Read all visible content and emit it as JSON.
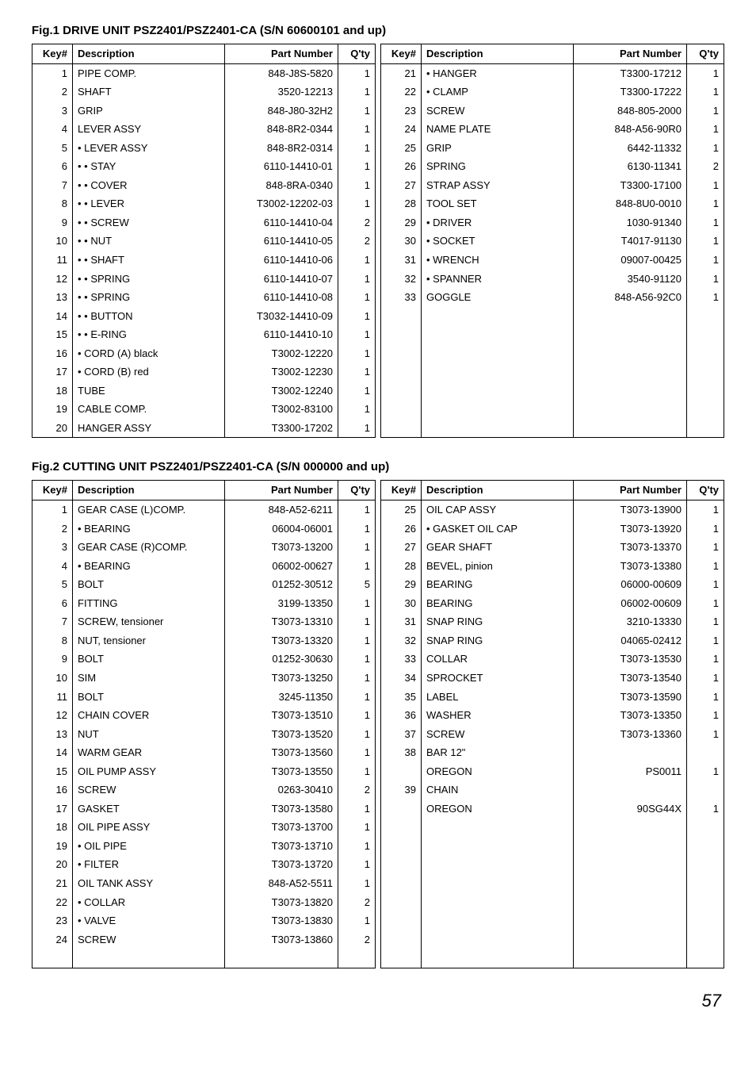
{
  "page_number": "57",
  "fig1": {
    "title": "Fig.1 DRIVE UNIT  PSZ2401/PSZ2401-CA (S/N 60600101 and up)",
    "headers": {
      "key": "Key#",
      "desc": "Description",
      "part": "Part Number",
      "qty": "Q'ty"
    },
    "left": [
      {
        "k": "1",
        "d": "PIPE COMP.",
        "p": "848-J8S-5820",
        "q": "1"
      },
      {
        "k": "2",
        "d": "SHAFT",
        "p": "3520-12213",
        "q": "1"
      },
      {
        "k": "3",
        "d": "GRIP",
        "p": "848-J80-32H2",
        "q": "1"
      },
      {
        "k": "4",
        "d": "LEVER ASSY",
        "p": "848-8R2-0344",
        "q": "1"
      },
      {
        "k": "5",
        "d": "• LEVER ASSY",
        "p": "848-8R2-0314",
        "q": "1"
      },
      {
        "k": "6",
        "d": "• • STAY",
        "p": "6110-14410-01",
        "q": "1"
      },
      {
        "k": "7",
        "d": "• • COVER",
        "p": "848-8RA-0340",
        "q": "1"
      },
      {
        "k": "8",
        "d": "• • LEVER",
        "p": "T3002-12202-03",
        "q": "1"
      },
      {
        "k": "9",
        "d": "• • SCREW",
        "p": "6110-14410-04",
        "q": "2"
      },
      {
        "k": "10",
        "d": "• • NUT",
        "p": "6110-14410-05",
        "q": "2"
      },
      {
        "k": "11",
        "d": "• • SHAFT",
        "p": "6110-14410-06",
        "q": "1"
      },
      {
        "k": "12",
        "d": "• • SPRING",
        "p": "6110-14410-07",
        "q": "1"
      },
      {
        "k": "13",
        "d": "• • SPRING",
        "p": "6110-14410-08",
        "q": "1"
      },
      {
        "k": "14",
        "d": "• • BUTTON",
        "p": "T3032-14410-09",
        "q": "1"
      },
      {
        "k": "15",
        "d": "• • E-RING",
        "p": "6110-14410-10",
        "q": "1"
      },
      {
        "k": "16",
        "d": "• CORD (A) black",
        "p": "T3002-12220",
        "q": "1"
      },
      {
        "k": "17",
        "d": "• CORD (B) red",
        "p": "T3002-12230",
        "q": "1"
      },
      {
        "k": "18",
        "d": "TUBE",
        "p": "T3002-12240",
        "q": "1"
      },
      {
        "k": "19",
        "d": "CABLE COMP.",
        "p": "T3002-83100",
        "q": "1"
      },
      {
        "k": "20",
        "d": "HANGER ASSY",
        "p": "T3300-17202",
        "q": "1"
      }
    ],
    "right": [
      {
        "k": "21",
        "d": "• HANGER",
        "p": "T3300-17212",
        "q": "1"
      },
      {
        "k": "22",
        "d": "• CLAMP",
        "p": "T3300-17222",
        "q": "1"
      },
      {
        "k": "23",
        "d": "SCREW",
        "p": "848-805-2000",
        "q": "1"
      },
      {
        "k": "24",
        "d": "NAME PLATE",
        "p": "848-A56-90R0",
        "q": "1"
      },
      {
        "k": "25",
        "d": "GRIP",
        "p": "6442-11332",
        "q": "1"
      },
      {
        "k": "26",
        "d": "SPRING",
        "p": "6130-11341",
        "q": "2"
      },
      {
        "k": "27",
        "d": "STRAP ASSY",
        "p": "T3300-17100",
        "q": "1"
      },
      {
        "k": "28",
        "d": "TOOL SET",
        "p": "848-8U0-0010",
        "q": "1"
      },
      {
        "k": "29",
        "d": "• DRIVER",
        "p": "1030-91340",
        "q": "1"
      },
      {
        "k": "30",
        "d": "• SOCKET",
        "p": "T4017-91130",
        "q": "1"
      },
      {
        "k": "31",
        "d": "• WRENCH",
        "p": "09007-00425",
        "q": "1"
      },
      {
        "k": "32",
        "d": "• SPANNER",
        "p": "3540-91120",
        "q": "1"
      },
      {
        "k": "33",
        "d": "GOGGLE",
        "p": "848-A56-92C0",
        "q": "1"
      }
    ],
    "right_pad": 7
  },
  "fig2": {
    "title": "Fig.2 CUTTING UNIT  PSZ2401/PSZ2401-CA (S/N 000000 and up)",
    "headers": {
      "key": "Key#",
      "desc": "Description",
      "part": "Part Number",
      "qty": "Q'ty"
    },
    "left": [
      {
        "k": "1",
        "d": "GEAR CASE (L)COMP.",
        "p": "848-A52-6211",
        "q": "1"
      },
      {
        "k": "2",
        "d": "• BEARING",
        "p": "06004-06001",
        "q": "1"
      },
      {
        "k": "3",
        "d": "GEAR CASE (R)COMP.",
        "p": "T3073-13200",
        "q": "1"
      },
      {
        "k": "4",
        "d": "• BEARING",
        "p": "06002-00627",
        "q": "1"
      },
      {
        "k": "5",
        "d": "BOLT",
        "p": "01252-30512",
        "q": "5"
      },
      {
        "k": "6",
        "d": "FITTING",
        "p": "3199-13350",
        "q": "1"
      },
      {
        "k": "7",
        "d": "SCREW, tensioner",
        "p": "T3073-13310",
        "q": "1"
      },
      {
        "k": "8",
        "d": "NUT, tensioner",
        "p": "T3073-13320",
        "q": "1"
      },
      {
        "k": "9",
        "d": "BOLT",
        "p": "01252-30630",
        "q": "1"
      },
      {
        "k": "10",
        "d": "SIM",
        "p": "T3073-13250",
        "q": "1"
      },
      {
        "k": "11",
        "d": "BOLT",
        "p": "3245-11350",
        "q": "1"
      },
      {
        "k": "12",
        "d": "CHAIN COVER",
        "p": "T3073-13510",
        "q": "1"
      },
      {
        "k": "13",
        "d": "NUT",
        "p": "T3073-13520",
        "q": "1"
      },
      {
        "k": "14",
        "d": "WARM GEAR",
        "p": "T3073-13560",
        "q": "1"
      },
      {
        "k": "15",
        "d": "OIL PUMP ASSY",
        "p": "T3073-13550",
        "q": "1"
      },
      {
        "k": "16",
        "d": "SCREW",
        "p": "0263-30410",
        "q": "2"
      },
      {
        "k": "17",
        "d": "GASKET",
        "p": "T3073-13580",
        "q": "1"
      },
      {
        "k": "18",
        "d": "OIL PIPE ASSY",
        "p": "T3073-13700",
        "q": "1"
      },
      {
        "k": "19",
        "d": "• OIL PIPE",
        "p": "T3073-13710",
        "q": "1"
      },
      {
        "k": "20",
        "d": "• FILTER",
        "p": "T3073-13720",
        "q": "1"
      },
      {
        "k": "21",
        "d": "OIL TANK ASSY",
        "p": "848-A52-5511",
        "q": "1"
      },
      {
        "k": "22",
        "d": "• COLLAR",
        "p": "T3073-13820",
        "q": "2"
      },
      {
        "k": "23",
        "d": "• VALVE",
        "p": "T3073-13830",
        "q": "1"
      },
      {
        "k": "24",
        "d": "SCREW",
        "p": "T3073-13860",
        "q": "2"
      }
    ],
    "right": [
      {
        "k": "25",
        "d": "OIL CAP ASSY",
        "p": "T3073-13900",
        "q": "1"
      },
      {
        "k": "26",
        "d": "• GASKET OIL CAP",
        "p": "T3073-13920",
        "q": "1"
      },
      {
        "k": "27",
        "d": "GEAR SHAFT",
        "p": "T3073-13370",
        "q": "1"
      },
      {
        "k": "28",
        "d": "BEVEL, pinion",
        "p": "T3073-13380",
        "q": "1"
      },
      {
        "k": "29",
        "d": "BEARING",
        "p": "06000-00609",
        "q": "1"
      },
      {
        "k": "30",
        "d": "BEARING",
        "p": "06002-00609",
        "q": "1"
      },
      {
        "k": "31",
        "d": "SNAP RING",
        "p": "3210-13330",
        "q": "1"
      },
      {
        "k": "32",
        "d": "SNAP RING",
        "p": "04065-02412",
        "q": "1"
      },
      {
        "k": "33",
        "d": "COLLAR",
        "p": "T3073-13530",
        "q": "1"
      },
      {
        "k": "34",
        "d": "SPROCKET",
        "p": "T3073-13540",
        "q": "1"
      },
      {
        "k": "35",
        "d": "LABEL",
        "p": "T3073-13590",
        "q": "1"
      },
      {
        "k": "36",
        "d": "WASHER",
        "p": "T3073-13350",
        "q": "1"
      },
      {
        "k": "37",
        "d": "SCREW",
        "p": "T3073-13360",
        "q": "1"
      },
      {
        "k": "38",
        "d": "BAR 12\"",
        "p": "",
        "q": ""
      },
      {
        "k": "",
        "d": "OREGON",
        "p": "PS0011",
        "q": "1"
      },
      {
        "k": "39",
        "d": "CHAIN",
        "p": "",
        "q": ""
      },
      {
        "k": "",
        "d": "OREGON",
        "p": "90SG44X",
        "q": "1"
      }
    ],
    "right_pad": 7
  }
}
